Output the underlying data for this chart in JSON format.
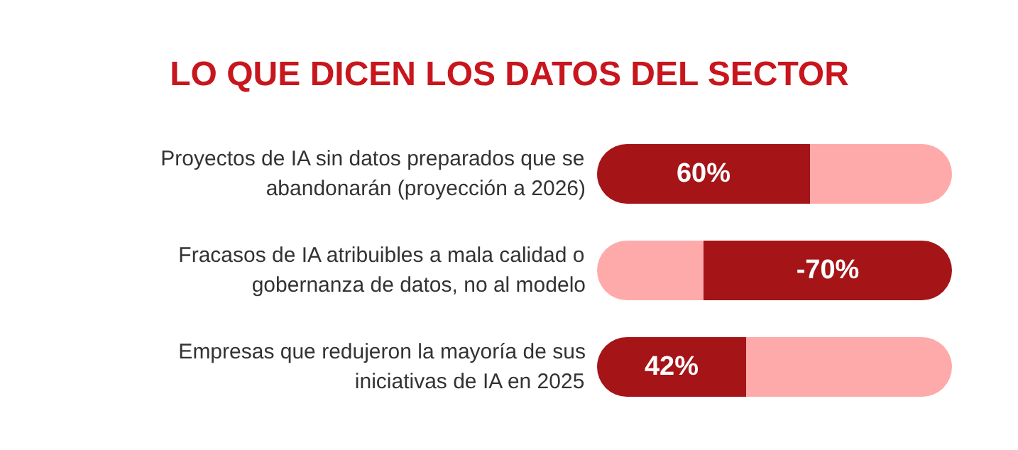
{
  "chart_data": {
    "type": "bar",
    "title": "LO QUE DICEN LOS DATOS DEL SECTOR",
    "orientation": "horizontal",
    "stacked": true,
    "categories": [
      "Proyectos de IA sin datos preparados que se\nabandonarán (proyección a 2026)",
      "Fracasos de IA atribuibles a mala calidad o\ngobernanza de datos, no al modelo",
      "Empresas que redujeron la mayoría de sus\niniciativas de IA en 2025"
    ],
    "xlim": [
      0,
      100
    ],
    "series": [
      {
        "color": "#a51417",
        "values": [
          60,
          null,
          42
        ],
        "value_labels": [
          "60%",
          null,
          "42%"
        ]
      },
      {
        "color": "#ffaaaa",
        "values": [
          40,
          30,
          58
        ]
      },
      {
        "color": "#a51417",
        "values": [
          null,
          70,
          null
        ]
      }
    ],
    "annotations": [
      "-70%"
    ]
  }
}
